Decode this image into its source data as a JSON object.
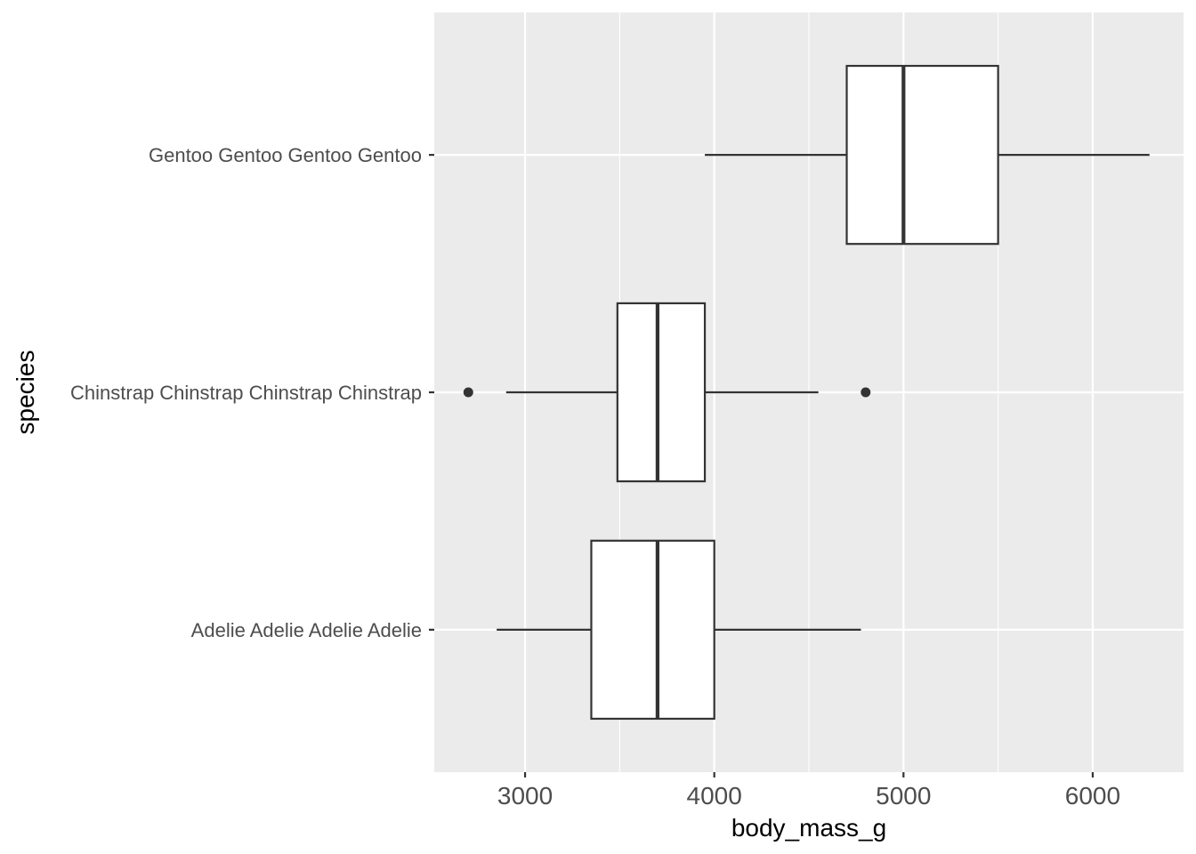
{
  "chart_data": {
    "type": "boxplot",
    "orientation": "horizontal",
    "xlabel": "body_mass_g",
    "ylabel": "species",
    "xlim": [
      2520,
      6480
    ],
    "x_ticks": [
      3000,
      4000,
      5000,
      6000
    ],
    "x_tick_labels": [
      "3000",
      "4000",
      "5000",
      "6000"
    ],
    "grid": true,
    "legend": "none",
    "colors": {
      "panel_bg": "#EBEBEB",
      "grid": "#FFFFFF",
      "box_line": "#333333",
      "box_fill": "#FFFFFF",
      "tick_text": "#4D4D4D",
      "title_text": "#000000"
    },
    "categories": [
      "Adelie Adelie Adelie Adelie",
      "Chinstrap Chinstrap Chinstrap Chinstrap",
      "Gentoo Gentoo Gentoo Gentoo"
    ],
    "boxes": [
      {
        "category": "Adelie Adelie Adelie Adelie",
        "whisker_low": 2850,
        "q1": 3350,
        "median": 3700,
        "q3": 4000,
        "whisker_high": 4775,
        "outliers": []
      },
      {
        "category": "Chinstrap Chinstrap Chinstrap Chinstrap",
        "whisker_low": 2900,
        "q1": 3488,
        "median": 3700,
        "q3": 3950,
        "whisker_high": 4550,
        "outliers": [
          2700,
          4800
        ]
      },
      {
        "category": "Gentoo Gentoo Gentoo Gentoo",
        "whisker_low": 3950,
        "q1": 4700,
        "median": 5000,
        "q3": 5500,
        "whisker_high": 6300,
        "outliers": []
      }
    ]
  }
}
